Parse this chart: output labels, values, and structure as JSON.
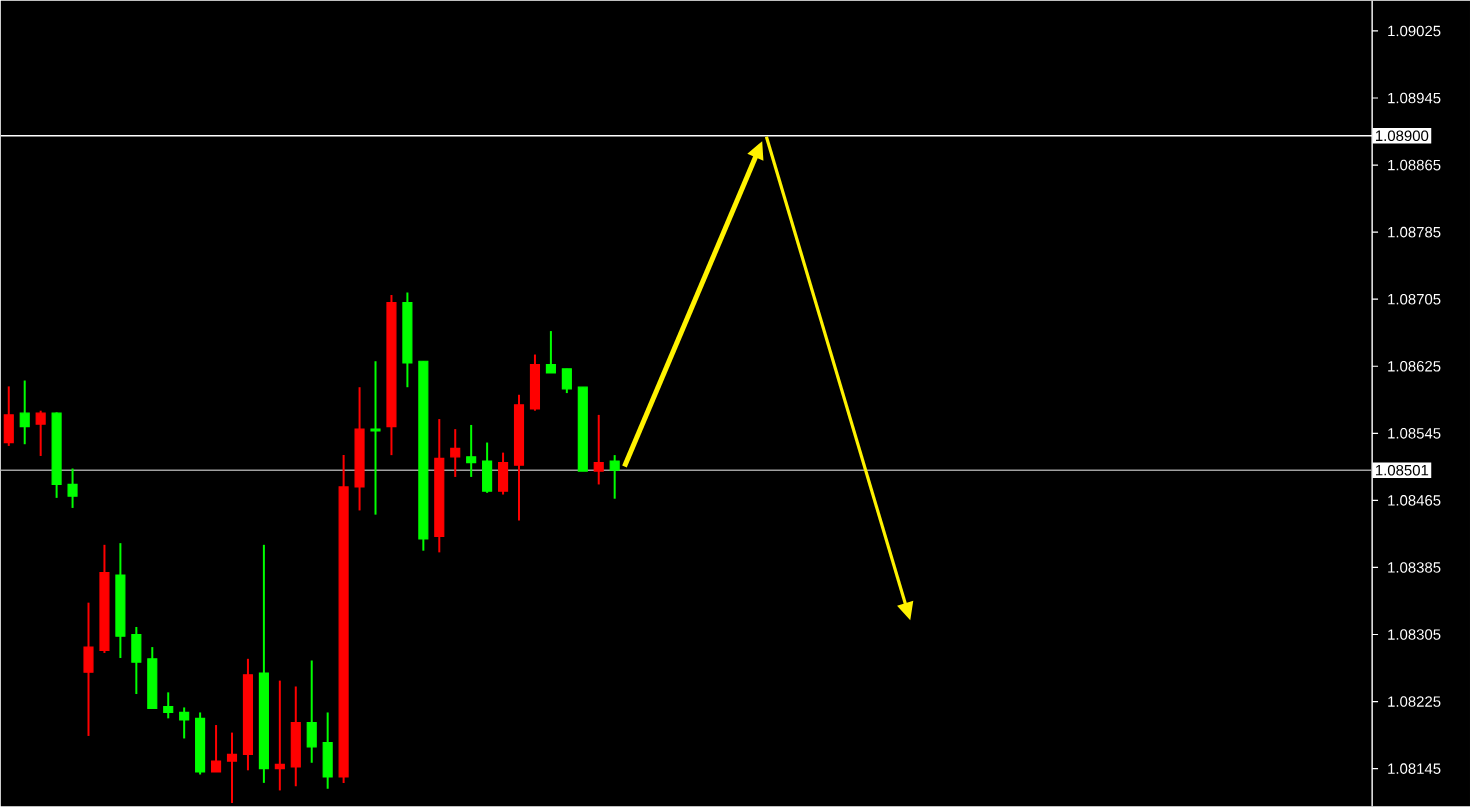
{
  "chart_data": {
    "type": "candlestick",
    "categories": [
      null,
      null,
      null,
      null,
      null,
      null,
      null,
      null,
      null,
      null,
      null,
      null,
      null,
      null,
      null,
      null,
      null,
      null,
      null,
      null,
      null,
      null,
      null,
      null,
      null,
      null,
      null,
      null,
      null,
      null,
      null,
      null,
      null,
      null,
      null,
      null,
      null,
      null,
      null,
      null,
      null,
      null,
      null,
      null,
      null,
      null,
      null,
      null,
      null,
      null,
      null,
      null,
      null,
      null,
      null,
      null,
      null,
      null,
      null,
      null,
      null,
      null,
      null,
      null,
      null,
      null,
      null,
      null,
      null,
      null,
      null,
      null,
      null,
      null,
      null,
      null,
      null,
      null,
      null,
      null,
      null,
      null,
      null,
      null,
      null,
      null
    ],
    "ohlc": [
      [
        1.08534,
        1.08601,
        1.0853,
        1.08567
      ],
      [
        1.08569,
        1.08608,
        1.08532,
        1.08553
      ],
      [
        1.08556,
        1.08572,
        1.08518,
        1.08569
      ],
      [
        1.08569,
        1.0857,
        1.08468,
        1.08484
      ],
      [
        1.08484,
        1.08503,
        1.08456,
        1.0847
      ],
      [
        1.0826,
        1.08343,
        1.08184,
        1.0829
      ],
      [
        1.08286,
        1.08412,
        1.08283,
        1.08379
      ],
      [
        1.08376,
        1.08414,
        1.08277,
        1.08303
      ],
      [
        1.08305,
        1.08314,
        1.08234,
        1.08272
      ],
      [
        1.08276,
        1.0829,
        1.08217,
        1.08217
      ],
      [
        1.08219,
        1.08236,
        1.08205,
        1.08212
      ],
      [
        1.08212,
        1.08218,
        1.08181,
        1.08203
      ],
      [
        1.08205,
        1.08212,
        1.08138,
        1.08141
      ],
      [
        1.08141,
        1.08197,
        1.08141,
        1.08154
      ],
      [
        1.08154,
        1.08188,
        1.08104,
        1.08162
      ],
      [
        1.08162,
        1.08276,
        1.08143,
        1.08257
      ],
      [
        1.08259,
        1.08412,
        1.08128,
        1.08145
      ],
      [
        1.08145,
        1.0825,
        1.08119,
        1.0815
      ],
      [
        1.08147,
        1.08243,
        1.08124,
        1.082
      ],
      [
        1.082,
        1.08274,
        1.08152,
        1.08171
      ],
      [
        1.08176,
        1.08212,
        1.08121,
        1.08135
      ],
      [
        1.08135,
        1.08519,
        1.08128,
        1.08481
      ],
      [
        1.08481,
        1.086,
        1.08453,
        1.0855
      ],
      [
        1.0855,
        1.08631,
        1.08448,
        1.08548
      ],
      [
        1.08553,
        1.0871,
        1.08519,
        1.08701
      ],
      [
        1.08701,
        1.08713,
        1.086,
        1.08629
      ],
      [
        1.08631,
        1.08631,
        1.08405,
        1.08419
      ],
      [
        1.08422,
        1.08562,
        1.08403,
        1.08515
      ],
      [
        1.08517,
        1.0855,
        1.08493,
        1.08527
      ],
      [
        1.08517,
        1.08555,
        1.08493,
        1.0851
      ],
      [
        1.08512,
        1.08534,
        1.08474,
        1.08476
      ],
      [
        1.08476,
        1.08522,
        1.08472,
        1.0851
      ],
      [
        1.08507,
        1.08591,
        1.08441,
        1.08579
      ],
      [
        1.08574,
        1.08639,
        1.08572,
        1.08627
      ],
      [
        1.08627,
        1.08667,
        1.08617,
        1.08617
      ],
      [
        1.08622,
        1.08622,
        1.08593,
        1.08598
      ],
      [
        1.086,
        1.086,
        1.085,
        1.085
      ],
      [
        1.085,
        1.08567,
        1.08484,
        1.0851
      ],
      [
        1.08512,
        1.08519,
        1.08467,
        1.08501
      ],
      null,
      null,
      null,
      null,
      null,
      null,
      null,
      null,
      null,
      null,
      null,
      null,
      null,
      null,
      null,
      null,
      null,
      null,
      null,
      null,
      null,
      null,
      null,
      null,
      null,
      null,
      null,
      null,
      null,
      null,
      null,
      null,
      null,
      null,
      null,
      null,
      null,
      null,
      null,
      null,
      null,
      null,
      null,
      null,
      null,
      null,
      null
    ],
    "colors": [
      "#ff0000",
      "#00ff00",
      "#ff0000",
      "#00ff00",
      "#00ff00",
      "#ff0000",
      "#ff0000",
      "#00ff00",
      "#00ff00",
      "#00ff00",
      "#00ff00",
      "#00ff00",
      "#00ff00",
      "#ff0000",
      "#ff0000",
      "#ff0000",
      "#00ff00",
      "#ff0000",
      "#ff0000",
      "#00ff00",
      "#00ff00",
      "#ff0000",
      "#ff0000",
      "#00ff00",
      "#ff0000",
      "#00ff00",
      "#00ff00",
      "#ff0000",
      "#ff0000",
      "#00ff00",
      "#00ff00",
      "#ff0000",
      "#ff0000",
      "#ff0000",
      "#00ff00",
      "#00ff00",
      "#00ff00",
      "#ff0000",
      "#00ff00",
      null,
      null,
      null,
      null,
      null,
      null,
      null,
      null,
      null,
      null,
      null,
      null,
      null,
      null,
      null,
      null,
      null,
      null,
      null,
      null,
      null,
      null,
      null,
      null,
      null,
      null,
      null,
      null,
      null,
      null,
      null,
      null,
      null,
      null,
      null,
      null,
      null,
      null,
      null,
      null,
      null,
      null,
      null,
      null,
      null,
      null,
      null
    ],
    "ylim": [
      1.081,
      1.09061
    ],
    "yticks": [
      1.08145,
      1.08225,
      1.08305,
      1.08385,
      1.08465,
      1.08545,
      1.08625,
      1.08705,
      1.08785,
      1.08865,
      1.08945,
      1.09025
    ],
    "ref_lines": [
      {
        "axis": "y",
        "value": 1.089,
        "label": "1.08900",
        "color": "#ffffff"
      },
      {
        "axis": "y",
        "value": 1.08501,
        "label": "1.08501",
        "color": "#a0a0a0"
      }
    ],
    "tick_labels": "y"
  }
}
